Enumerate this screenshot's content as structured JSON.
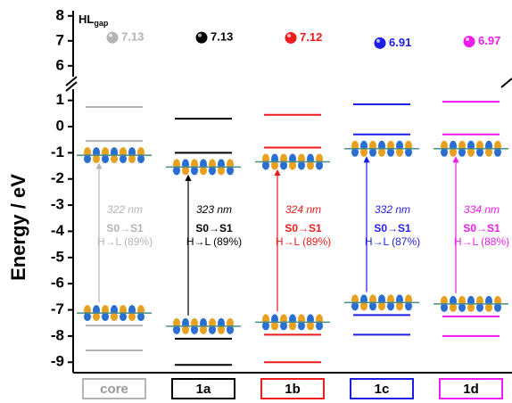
{
  "chart_data": {
    "type": "energy-levels",
    "y_label": "Energy / eV",
    "gap_label": "HL",
    "gap_label_sub": "gap",
    "ylim": [
      -9.4,
      1.6
    ],
    "yticks": [
      -9,
      -8,
      -7,
      -6,
      -5,
      -4,
      -3,
      -2,
      -1,
      0,
      1
    ],
    "ylim_upper": [
      5.6,
      8.1
    ],
    "yticks_upper": [
      6,
      7,
      8
    ],
    "series": [
      {
        "name": "core",
        "color": "#b4b4b4",
        "levels": [
          0.75,
          -0.55,
          -7.6,
          -8.55
        ],
        "gap": 7.13,
        "wavelength": "322 nm",
        "transition": "S0→S1",
        "contribution": "H→L (89%)"
      },
      {
        "name": "1a",
        "color": "#000000",
        "levels": [
          0.3,
          -1.0,
          -8.1,
          -9.1
        ],
        "gap": 7.13,
        "wavelength": "323 nm",
        "transition": "S0→S1",
        "contribution": "H→L (89%)"
      },
      {
        "name": "1b",
        "color": "#ee1c1c",
        "levels": [
          0.45,
          -0.8,
          -7.95,
          -9.0
        ],
        "gap": 7.12,
        "wavelength": "324 nm",
        "transition": "S0→S1",
        "contribution": "H→L (89%)"
      },
      {
        "name": "1c",
        "color": "#1e1ee6",
        "levels": [
          0.85,
          -0.3,
          -7.2,
          -7.95
        ],
        "gap": 6.91,
        "wavelength": "332 nm",
        "transition": "S0→S1",
        "contribution": "H→L (87%)"
      },
      {
        "name": "1d",
        "color": "#ee1cee",
        "levels": [
          0.95,
          -0.3,
          -7.25,
          -8.0
        ],
        "gap": 6.97,
        "wavelength": "334 nm",
        "transition": "S0→S1",
        "contribution": "H→L (88%)"
      }
    ]
  }
}
